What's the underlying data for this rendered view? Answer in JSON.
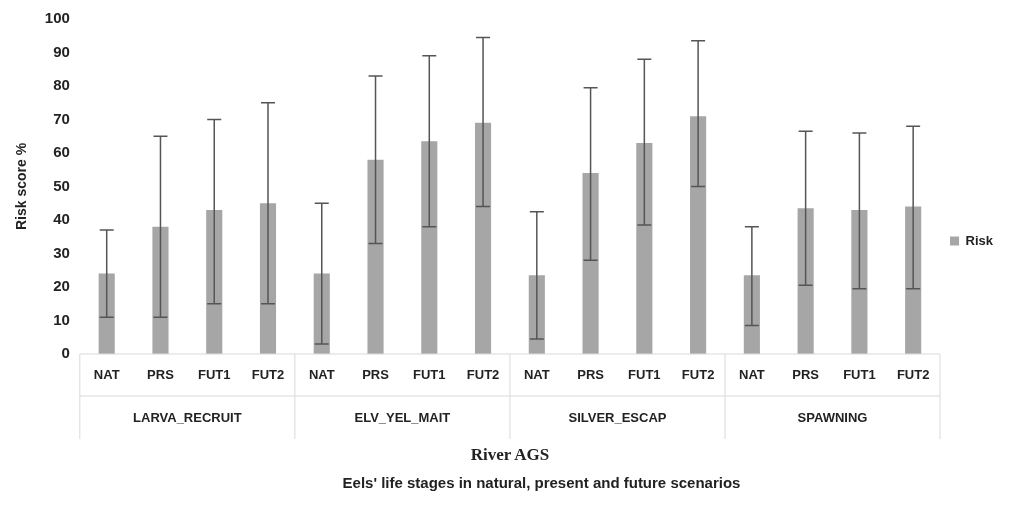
{
  "chart_data": {
    "type": "bar",
    "xlabel": "River AGS",
    "ylabel": "Risk score %",
    "categories": [
      "NAT",
      "PRS",
      "FUT1",
      "FUT2",
      "NAT",
      "PRS",
      "FUT1",
      "FUT2",
      "NAT",
      "PRS",
      "FUT1",
      "FUT2",
      "NAT",
      "PRS",
      "FUT1",
      "FUT2"
    ],
    "series": [
      {
        "name": "Risk",
        "color": "#a6a6a6",
        "values": [
          24,
          38,
          43,
          45,
          24,
          58,
          63.5,
          69,
          23.5,
          54,
          63,
          71,
          23.5,
          43.5,
          43,
          44
        ],
        "errors": [
          [
            11,
            37
          ],
          [
            11,
            65
          ],
          [
            15,
            70
          ],
          [
            15,
            75
          ],
          [
            3,
            45
          ],
          [
            33,
            83
          ],
          [
            38,
            89
          ],
          [
            44,
            94.5
          ],
          [
            4.5,
            42.5
          ],
          [
            28,
            79.5
          ],
          [
            38.5,
            88
          ],
          [
            50,
            93.5
          ],
          [
            8.5,
            38
          ],
          [
            20.5,
            66.5
          ],
          [
            19.5,
            66
          ],
          [
            19.5,
            68
          ]
        ]
      }
    ],
    "ylim": [
      0,
      100
    ],
    "yticks": [
      0,
      10,
      20,
      30,
      40,
      50,
      60,
      70,
      80,
      90,
      100
    ],
    "grid": false,
    "legend": "right",
    "annotations": [
      "LARVA_RECRUIT",
      "ELV_YEL_MAIT",
      "SILVER_ESCAP",
      "SPAWNING",
      "Eels' life stages in natural, present and future scenarios"
    ]
  }
}
